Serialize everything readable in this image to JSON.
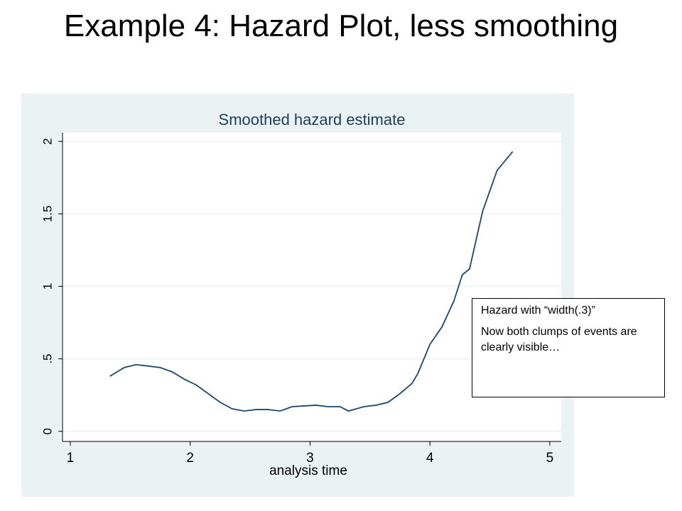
{
  "slide_title": "Example 4: Hazard Plot, less smoothing",
  "chart_data": {
    "type": "line",
    "title": "Smoothed hazard estimate",
    "x_label": "analysis time",
    "x": [
      1.33,
      1.45,
      1.55,
      1.65,
      1.75,
      1.85,
      1.95,
      2.05,
      2.15,
      2.25,
      2.35,
      2.45,
      2.55,
      2.65,
      2.75,
      2.85,
      2.95,
      3.05,
      3.15,
      3.25,
      3.32,
      3.45,
      3.55,
      3.65,
      3.75,
      3.85,
      3.9,
      4.0,
      4.1,
      4.2,
      4.27,
      4.33,
      4.44,
      4.56,
      4.69
    ],
    "values": [
      0.38,
      0.44,
      0.46,
      0.45,
      0.44,
      0.41,
      0.36,
      0.32,
      0.26,
      0.2,
      0.155,
      0.14,
      0.15,
      0.15,
      0.14,
      0.17,
      0.175,
      0.18,
      0.17,
      0.17,
      0.14,
      0.17,
      0.18,
      0.2,
      0.26,
      0.33,
      0.4,
      0.6,
      0.72,
      0.9,
      1.08,
      1.12,
      1.52,
      1.8,
      1.93
    ],
    "color": "#1a476f",
    "xlim": [
      0.935,
      5.095
    ],
    "xticks": [
      1,
      2,
      3,
      4,
      5
    ],
    "ylim": [
      -0.07,
      2.06
    ],
    "yticks": [
      0,
      {
        "value": 0.5,
        "label": ".5"
      },
      1,
      1.5,
      2
    ],
    "grid": true,
    "annotations": [
      "Hazard with “width(.3)”",
      "Now both clumps of events are clearly visible…"
    ]
  }
}
